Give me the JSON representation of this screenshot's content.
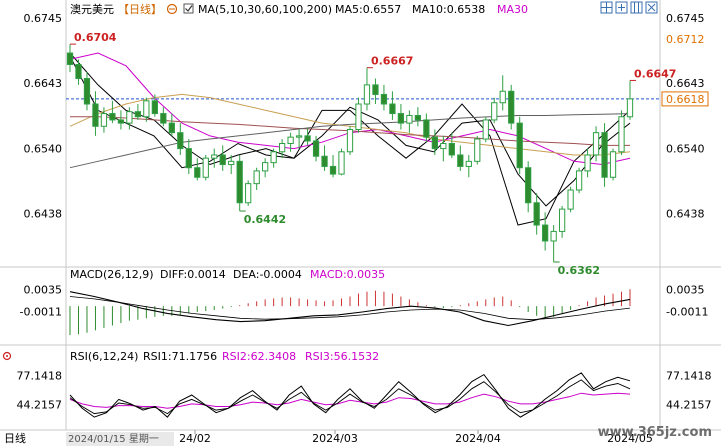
{
  "header": {
    "symbol": "澳元美元",
    "period": "【日线】",
    "ma_label": "MA(5,10,30,60,100,200)",
    "ma5": "MA5:0.6557",
    "ma10": "MA10:0.6538",
    "ma30": "MA30"
  },
  "macd_header": {
    "title": "MACD(26,12,9)",
    "diff": "DIFF:0.0014",
    "dea": "DEA:-0.0004",
    "macd": "MACD:0.0035"
  },
  "rsi_header": {
    "title": "RSI(6,12,24)",
    "rsi1": "RSI1:71.1756",
    "rsi2": "RSI2:62.3408",
    "rsi3": "RSI3:56.1532"
  },
  "footer": {
    "period_label": "日线",
    "cursor_date": "2024/01/15 星期一",
    "dates": [
      "24/02",
      "2024/03",
      "2024/04",
      "2024/05"
    ]
  },
  "watermark": "www.365jz.com",
  "colors": {
    "up": "#2ea043",
    "down": "#2e8b2e",
    "ma5": "#000000",
    "ma10": "#000000",
    "ma30": "#cc00cc",
    "ma60": "#c8a050",
    "ma100": "#a05050",
    "ma200": "#606060",
    "price_line": "#2255cc",
    "peak_label": "#cc2222",
    "trough_label": "#2e8b2e",
    "current_price": "#e07000"
  },
  "icons": [
    "settings-icon",
    "layout-icon",
    "expand-icon",
    "grid-icon",
    "close-icon"
  ],
  "chart_data": {
    "type": "candlestick",
    "y_axis": {
      "ylim": [
        0.6362,
        0.6745
      ],
      "left_ticks": [
        "0.6745",
        "0.6643",
        "0.6540",
        "0.6438"
      ],
      "right_ticks": [
        "0.6745",
        "0.6712",
        "0.6643",
        "0.6618",
        "0.6540",
        "0.6438"
      ]
    },
    "current_price": 0.6618,
    "current_price_label": "0.6618",
    "annotations": [
      {
        "label": "0.6704",
        "value": 0.6704,
        "kind": "peak"
      },
      {
        "label": "0.6667",
        "value": 0.6667,
        "kind": "peak"
      },
      {
        "label": "0.6647",
        "value": 0.6647,
        "kind": "peak"
      },
      {
        "label": "0.6442",
        "value": 0.6442,
        "kind": "trough"
      },
      {
        "label": "0.6362",
        "value": 0.6362,
        "kind": "trough"
      }
    ],
    "candles": [
      [
        0.669,
        0.6704,
        0.666,
        0.6672
      ],
      [
        0.6672,
        0.668,
        0.664,
        0.665
      ],
      [
        0.665,
        0.666,
        0.66,
        0.661
      ],
      [
        0.661,
        0.663,
        0.656,
        0.6575
      ],
      [
        0.6575,
        0.6605,
        0.6565,
        0.6595
      ],
      [
        0.6595,
        0.6615,
        0.658,
        0.6585
      ],
      [
        0.6585,
        0.66,
        0.657,
        0.658
      ],
      [
        0.658,
        0.6605,
        0.657,
        0.6598
      ],
      [
        0.6598,
        0.661,
        0.6585,
        0.659
      ],
      [
        0.659,
        0.662,
        0.6582,
        0.6615
      ],
      [
        0.6615,
        0.6625,
        0.659,
        0.6595
      ],
      [
        0.6595,
        0.6605,
        0.6575,
        0.658
      ],
      [
        0.658,
        0.6595,
        0.656,
        0.6565
      ],
      [
        0.6565,
        0.658,
        0.653,
        0.654
      ],
      [
        0.654,
        0.6555,
        0.65,
        0.651
      ],
      [
        0.651,
        0.6525,
        0.649,
        0.6495
      ],
      [
        0.6495,
        0.653,
        0.649,
        0.6525
      ],
      [
        0.6525,
        0.654,
        0.651,
        0.653
      ],
      [
        0.653,
        0.6545,
        0.6505,
        0.6515
      ],
      [
        0.6515,
        0.653,
        0.65,
        0.652
      ],
      [
        0.652,
        0.653,
        0.6442,
        0.6455
      ],
      [
        0.6455,
        0.649,
        0.645,
        0.6485
      ],
      [
        0.6485,
        0.651,
        0.6475,
        0.6505
      ],
      [
        0.6505,
        0.6525,
        0.6495,
        0.6518
      ],
      [
        0.6518,
        0.654,
        0.651,
        0.6535
      ],
      [
        0.6535,
        0.6555,
        0.6525,
        0.6548
      ],
      [
        0.6548,
        0.6565,
        0.6535,
        0.6558
      ],
      [
        0.6558,
        0.657,
        0.654,
        0.656
      ],
      [
        0.656,
        0.6572,
        0.6545,
        0.6552
      ],
      [
        0.6552,
        0.656,
        0.652,
        0.6528
      ],
      [
        0.6528,
        0.6545,
        0.6505,
        0.6512
      ],
      [
        0.6512,
        0.653,
        0.6495,
        0.65
      ],
      [
        0.65,
        0.654,
        0.6498,
        0.6535
      ],
      [
        0.6535,
        0.6575,
        0.653,
        0.657
      ],
      [
        0.657,
        0.662,
        0.6565,
        0.661
      ],
      [
        0.661,
        0.6667,
        0.66,
        0.664
      ],
      [
        0.664,
        0.665,
        0.661,
        0.6625
      ],
      [
        0.6625,
        0.664,
        0.66,
        0.661
      ],
      [
        0.661,
        0.663,
        0.6585,
        0.6595
      ],
      [
        0.6595,
        0.661,
        0.657,
        0.658
      ],
      [
        0.658,
        0.66,
        0.6565,
        0.6592
      ],
      [
        0.6592,
        0.6605,
        0.6575,
        0.6585
      ],
      [
        0.6585,
        0.6595,
        0.655,
        0.6558
      ],
      [
        0.6558,
        0.657,
        0.653,
        0.654
      ],
      [
        0.654,
        0.656,
        0.652,
        0.6548
      ],
      [
        0.6548,
        0.6565,
        0.6525,
        0.653
      ],
      [
        0.653,
        0.6545,
        0.6505,
        0.6512
      ],
      [
        0.6512,
        0.653,
        0.6495,
        0.652
      ],
      [
        0.652,
        0.656,
        0.6515,
        0.6555
      ],
      [
        0.6555,
        0.659,
        0.655,
        0.6585
      ],
      [
        0.6585,
        0.662,
        0.658,
        0.6612
      ],
      [
        0.6612,
        0.6655,
        0.66,
        0.663
      ],
      [
        0.663,
        0.664,
        0.657,
        0.658
      ],
      [
        0.658,
        0.659,
        0.65,
        0.651
      ],
      [
        0.651,
        0.652,
        0.644,
        0.6455
      ],
      [
        0.6455,
        0.647,
        0.6405,
        0.642
      ],
      [
        0.642,
        0.644,
        0.638,
        0.6395
      ],
      [
        0.6395,
        0.642,
        0.6362,
        0.641
      ],
      [
        0.641,
        0.645,
        0.64,
        0.6445
      ],
      [
        0.6445,
        0.648,
        0.644,
        0.6475
      ],
      [
        0.6475,
        0.651,
        0.647,
        0.6505
      ],
      [
        0.6505,
        0.654,
        0.6495,
        0.653
      ],
      [
        0.653,
        0.6575,
        0.652,
        0.6565
      ],
      [
        0.6565,
        0.658,
        0.648,
        0.6495
      ],
      [
        0.6495,
        0.654,
        0.649,
        0.6535
      ],
      [
        0.6535,
        0.66,
        0.653,
        0.659
      ],
      [
        0.659,
        0.6647,
        0.6585,
        0.6618
      ]
    ],
    "ma_series": [
      {
        "name": "MA5",
        "color_key": "ma5",
        "start": 0.6685,
        "path": [
          0.6685,
          0.66,
          0.658,
          0.656,
          0.651,
          0.652,
          0.6548,
          0.653,
          0.6525,
          0.66,
          0.66,
          0.656,
          0.6525,
          0.656,
          0.661,
          0.656,
          0.642,
          0.643,
          0.652,
          0.656,
          0.66
        ]
      },
      {
        "name": "MA10",
        "color_key": "ma10",
        "start": 0.669,
        "path": [
          0.669,
          0.664,
          0.66,
          0.6585,
          0.6545,
          0.6515,
          0.653,
          0.654,
          0.6525,
          0.656,
          0.6605,
          0.6585,
          0.6545,
          0.6535,
          0.658,
          0.6585,
          0.65,
          0.645,
          0.649,
          0.6545,
          0.658
        ]
      },
      {
        "name": "MA30",
        "color_key": "ma30",
        "start": 0.668,
        "path": [
          0.668,
          0.669,
          0.667,
          0.662,
          0.658,
          0.656,
          0.655,
          0.6545,
          0.654,
          0.655,
          0.6565,
          0.657,
          0.656,
          0.655,
          0.656,
          0.657,
          0.656,
          0.654,
          0.652,
          0.6515,
          0.6525
        ]
      },
      {
        "name": "MA60",
        "color_key": "ma60",
        "start": 0.6575,
        "path": [
          0.6575,
          0.6595,
          0.661,
          0.662,
          0.6625,
          0.662,
          0.661,
          0.66,
          0.659,
          0.658,
          0.6575,
          0.657,
          0.6565,
          0.6555,
          0.655,
          0.6545,
          0.654,
          0.6535,
          0.653,
          0.653,
          0.6535
        ]
      },
      {
        "name": "MA100",
        "color_key": "ma100",
        "start": 0.659,
        "path": [
          0.659,
          0.659,
          0.6588,
          0.6585,
          0.6582,
          0.658,
          0.6578,
          0.6575,
          0.6572,
          0.657,
          0.6568,
          0.6565,
          0.6562,
          0.656,
          0.6558,
          0.6555,
          0.6552,
          0.655,
          0.6548,
          0.6545,
          0.6545
        ]
      },
      {
        "name": "MA200",
        "color_key": "ma200",
        "start": 0.651,
        "path": [
          0.651,
          0.652,
          0.653,
          0.654,
          0.655,
          0.6555,
          0.656,
          0.6565,
          0.657,
          0.6575,
          0.6578,
          0.658,
          0.6582,
          0.6585,
          0.6588,
          0.659,
          0.6592,
          0.6592,
          0.6593,
          0.6594,
          0.6595
        ]
      }
    ],
    "macd": {
      "ticks": [
        "0.0035",
        "-0.0011"
      ],
      "ylim": [
        -0.007,
        0.005
      ],
      "hist": [
        -0.006,
        -0.0058,
        -0.0055,
        -0.005,
        -0.0045,
        -0.004,
        -0.0035,
        -0.003,
        -0.0028,
        -0.0025,
        -0.0022,
        -0.002,
        -0.002,
        -0.0018,
        -0.0015,
        -0.0012,
        -0.001,
        -0.0008,
        -0.0005,
        -0.0002,
        0.0002,
        0.0006,
        0.001,
        0.0014,
        0.0016,
        0.0018,
        0.0018,
        0.0016,
        0.0014,
        0.0012,
        0.001,
        0.0012,
        0.0016,
        0.002,
        0.0026,
        0.003,
        0.0032,
        0.003,
        0.0026,
        0.002,
        0.0014,
        0.0008,
        0.0002,
        -0.0002,
        -0.0004,
        -0.0002,
        0.0002,
        0.0006,
        0.001,
        0.0014,
        0.0018,
        0.002,
        0.0012,
        -0.0002,
        -0.0012,
        -0.002,
        -0.0024,
        -0.0022,
        -0.0016,
        -0.0008,
        0.0002,
        0.001,
        0.0018,
        0.0022,
        0.0026,
        0.003,
        0.0035
      ],
      "diff": [
        0.003,
        0.002,
        0.0008,
        -0.0005,
        -0.0015,
        -0.0022,
        -0.0028,
        -0.0032,
        -0.003,
        -0.0025,
        -0.002,
        -0.0018,
        -0.0012,
        -0.0005,
        0.0,
        -0.0004,
        -0.0012,
        -0.003,
        -0.004,
        -0.003,
        -0.0018,
        -0.0006,
        0.0005,
        0.0014
      ],
      "dea": [
        0.002,
        0.0015,
        0.0008,
        0.0,
        -0.0008,
        -0.0015,
        -0.002,
        -0.0025,
        -0.0027,
        -0.0026,
        -0.0024,
        -0.0022,
        -0.0018,
        -0.0012,
        -0.0008,
        -0.0006,
        -0.0008,
        -0.0015,
        -0.0025,
        -0.0028,
        -0.0024,
        -0.0018,
        -0.001,
        -0.0004
      ]
    },
    "rsi": {
      "ticks": [
        "77.1418",
        "44.2157"
      ],
      "ylim": [
        20,
        90
      ],
      "rsi1": [
        55,
        40,
        30,
        35,
        50,
        45,
        38,
        42,
        30,
        48,
        55,
        45,
        35,
        40,
        52,
        60,
        48,
        38,
        55,
        65,
        45,
        35,
        50,
        62,
        48,
        40,
        55,
        70,
        58,
        45,
        35,
        42,
        55,
        70,
        78,
        60,
        40,
        30,
        38,
        50,
        60,
        72,
        80,
        62,
        70,
        75,
        71
      ],
      "rsi2": [
        52,
        42,
        34,
        36,
        46,
        44,
        40,
        41,
        34,
        45,
        50,
        44,
        38,
        40,
        48,
        55,
        47,
        40,
        50,
        58,
        46,
        38,
        46,
        56,
        47,
        42,
        50,
        62,
        55,
        46,
        38,
        41,
        50,
        62,
        70,
        58,
        44,
        35,
        38,
        46,
        54,
        64,
        72,
        60,
        65,
        68,
        62
      ],
      "rsi3": [
        50,
        45,
        42,
        41,
        43,
        43,
        42,
        42,
        40,
        42,
        45,
        44,
        42,
        42,
        44,
        47,
        46,
        44,
        46,
        50,
        47,
        44,
        45,
        49,
        47,
        45,
        47,
        52,
        51,
        48,
        45,
        45,
        47,
        52,
        56,
        53,
        48,
        45,
        45,
        47,
        50,
        53,
        57,
        55,
        56,
        57,
        56
      ]
    }
  }
}
